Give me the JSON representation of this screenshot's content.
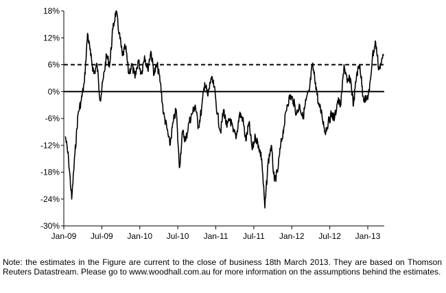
{
  "chart_data": {
    "type": "line",
    "y_tick_labels": [
      "18%",
      "12%",
      "6%",
      "0%",
      "-6%",
      "-12%",
      "-18%",
      "-24%",
      "-30%"
    ],
    "x_tick_labels": [
      "Jan-09",
      "Jul-09",
      "Jan-10",
      "Jul-10",
      "Jan-11",
      "Jul-11",
      "Jan-12",
      "Jul-12",
      "Jan-13"
    ],
    "ylim": [
      -30,
      18
    ],
    "y_unit": "%",
    "grid": false,
    "legend": "none",
    "reference_lines": [
      {
        "y": 6,
        "style": "dashed"
      },
      {
        "y": 0,
        "style": "solid"
      }
    ],
    "colors": {
      "series": "#000000",
      "axis": "#000000"
    },
    "series": [
      {
        "x": [
          "2009-01",
          "2009-01",
          "2009-02",
          "2009-02",
          "2009-03",
          "2009-03",
          "2009-04",
          "2009-04",
          "2009-05",
          "2009-05",
          "2009-06",
          "2009-06",
          "2009-07",
          "2009-07",
          "2009-08",
          "2009-08",
          "2009-09",
          "2009-09",
          "2009-10",
          "2009-10",
          "2009-11",
          "2009-11",
          "2009-12",
          "2009-12",
          "2010-01",
          "2010-01",
          "2010-02",
          "2010-02",
          "2010-03",
          "2010-03",
          "2010-04",
          "2010-04",
          "2010-05",
          "2010-05",
          "2010-06",
          "2010-06",
          "2010-07",
          "2010-07",
          "2010-08",
          "2010-08",
          "2010-09",
          "2010-09",
          "2010-10",
          "2010-10",
          "2010-11",
          "2010-11",
          "2010-12",
          "2010-12",
          "2011-01",
          "2011-01",
          "2011-02",
          "2011-02",
          "2011-03",
          "2011-03",
          "2011-04",
          "2011-04",
          "2011-05",
          "2011-05",
          "2011-06",
          "2011-06",
          "2011-07",
          "2011-07",
          "2011-08",
          "2011-08",
          "2011-09",
          "2011-09",
          "2011-10",
          "2011-10",
          "2011-11",
          "2011-11",
          "2011-12",
          "2011-12",
          "2012-01",
          "2012-01",
          "2012-02",
          "2012-02",
          "2012-03",
          "2012-03",
          "2012-04",
          "2012-04",
          "2012-05",
          "2012-05",
          "2012-06",
          "2012-06",
          "2012-07",
          "2012-07",
          "2012-08",
          "2012-08",
          "2012-09",
          "2012-09",
          "2012-10",
          "2012-10",
          "2012-11",
          "2012-11",
          "2012-12",
          "2012-12",
          "2013-01",
          "2013-01",
          "2013-02",
          "2013-02",
          "2013-03"
        ],
        "values": [
          -10,
          -15,
          -24,
          -14,
          -5,
          -2,
          2,
          13,
          8,
          4,
          6,
          -2,
          3,
          8,
          6,
          14,
          18,
          13,
          8,
          10,
          4,
          6,
          3,
          7,
          4,
          8,
          5,
          9,
          4,
          6,
          2,
          -5,
          -8,
          -12,
          -7,
          -4,
          -17,
          -9,
          -11,
          -7,
          -5,
          -3,
          -8,
          -4,
          2,
          -1,
          3,
          1,
          -5,
          -9,
          -4,
          -8,
          -6,
          -9,
          -10,
          -5,
          -6,
          -11,
          -7,
          -13,
          -10,
          -12,
          -15,
          -26,
          -16,
          -12,
          -20,
          -18,
          -12,
          -8,
          -3,
          -1,
          -2,
          -5,
          -3,
          -6,
          -2,
          0,
          6,
          2,
          -3,
          -5,
          -9,
          -7,
          -5,
          -6,
          -2,
          -3,
          6,
          2,
          3,
          -3,
          4,
          6,
          -1,
          -2,
          0,
          8,
          11,
          5,
          8
        ]
      }
    ]
  },
  "note": "Note: the estimates in the Figure are current to the close of business 18th March 2013. They are based on Thomson Reuters Datastream. Please go to www.woodhall.com.au for more information on the assumptions behind the estimates."
}
